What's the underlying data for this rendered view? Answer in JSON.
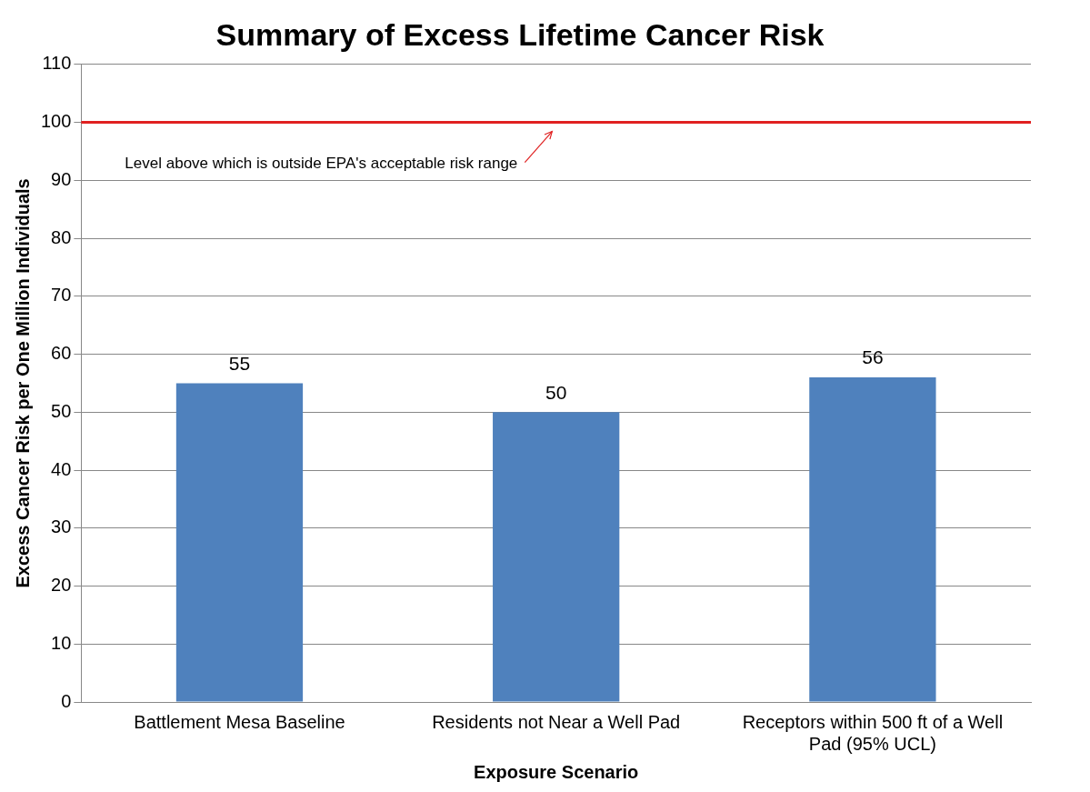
{
  "chart_data": {
    "type": "bar",
    "title": "Summary of Excess Lifetime Cancer Risk",
    "xlabel": "Exposure Scenario",
    "ylabel": "Excess Cancer Risk per One Million Individuals",
    "categories": [
      "Battlement Mesa Baseline",
      "Residents not Near a Well Pad",
      "Receptors within 500 ft of a Well Pad (95% UCL)"
    ],
    "values": [
      55,
      50,
      56
    ],
    "color": "#4f81bd",
    "ylim": [
      0,
      110
    ],
    "yticks": [
      0,
      10,
      20,
      30,
      40,
      50,
      60,
      70,
      80,
      90,
      100,
      110
    ],
    "grid": "y",
    "data_labels": true,
    "legend": false,
    "ref_lines": [
      {
        "axis": "y",
        "value": 100,
        "label": "Level above which is outside EPA's acceptable risk range",
        "color": "#e02020"
      }
    ]
  }
}
